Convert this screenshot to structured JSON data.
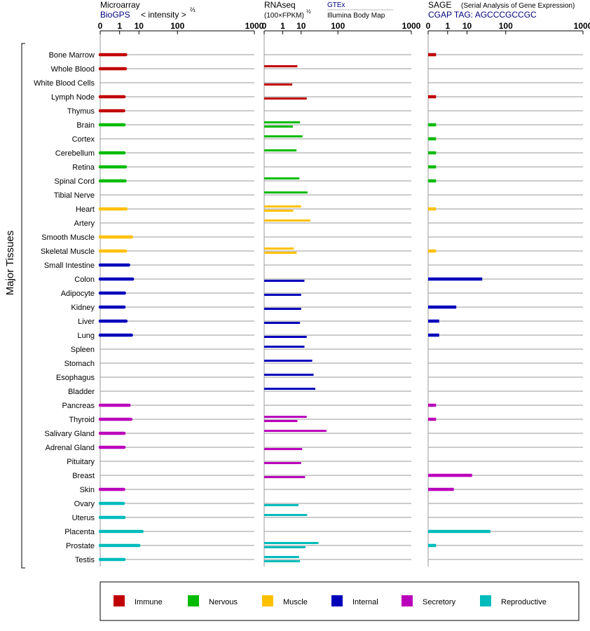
{
  "panels": {
    "microarray": {
      "title": "Microarray",
      "subtitle": "BioGPS",
      "scale_label": "< intensity >",
      "scale_exp": "⅔"
    },
    "rnaseq": {
      "title": "RNAseq",
      "subtitle": "(100×FPKM)",
      "scale_exp": "½",
      "source_link": "GTEx",
      "source_alt": "Illumina Body Map"
    },
    "sage": {
      "title": "SAGE",
      "title_note": "(Serial Analysis of Gene Expression)",
      "tag_line": "CGAP TAG: AGCCCGCCGC"
    }
  },
  "y_axis_label": "Major Tissues",
  "tick_labels": [
    "0",
    "1",
    "10",
    "100",
    "1000"
  ],
  "legend": [
    {
      "name": "Immune",
      "color": "#c00000"
    },
    {
      "name": "Nervous",
      "color": "#00bb00"
    },
    {
      "name": "Muscle",
      "color": "#ffc000"
    },
    {
      "name": "Internal",
      "color": "#0000bb"
    },
    {
      "name": "Secretory",
      "color": "#bb00bb"
    },
    {
      "name": "Reproductive",
      "color": "#00bbbb"
    }
  ],
  "chart_data": {
    "type": "bar",
    "orientation": "horizontal",
    "x_scale": "power",
    "xlim": [
      0,
      1000
    ],
    "ticks": [
      0,
      1,
      10,
      100,
      1000
    ],
    "categories": [
      "Bone Marrow",
      "Whole Blood",
      "White Blood Cells",
      "Lymph Node",
      "Thymus",
      "Brain",
      "Cortex",
      "Cerebellum",
      "Retina",
      "Spinal Cord",
      "Tibial Nerve",
      "Heart",
      "Artery",
      "Smooth Muscle",
      "Skeletal Muscle",
      "Small Intestine",
      "Colon",
      "Adipocyte",
      "Kidney",
      "Liver",
      "Lung",
      "Spleen",
      "Stomach",
      "Esophagus",
      "Bladder",
      "Pancreas",
      "Thyroid",
      "Salivary Gland",
      "Adrenal Gland",
      "Pituitary",
      "Breast",
      "Skin",
      "Ovary",
      "Uterus",
      "Placenta",
      "Prostate",
      "Testis"
    ],
    "system": [
      "Immune",
      "Immune",
      "Immune",
      "Immune",
      "Immune",
      "Nervous",
      "Nervous",
      "Nervous",
      "Nervous",
      "Nervous",
      "Nervous",
      "Muscle",
      "Muscle",
      "Muscle",
      "Muscle",
      "Internal",
      "Internal",
      "Internal",
      "Internal",
      "Internal",
      "Internal",
      "Internal",
      "Internal",
      "Internal",
      "Internal",
      "Secretory",
      "Secretory",
      "Secretory",
      "Secretory",
      "Secretory",
      "Secretory",
      "Secretory",
      "Reproductive",
      "Reproductive",
      "Reproductive",
      "Reproductive",
      "Reproductive"
    ],
    "series": [
      {
        "name": "Microarray",
        "values": [
          2.5,
          2.4,
          null,
          2.0,
          1.9,
          2.0,
          null,
          2.0,
          2.4,
          2.3,
          null,
          2.6,
          null,
          5.0,
          2.5,
          3.6,
          5.5,
          2.1,
          2.0,
          2.6,
          4.9,
          null,
          null,
          null,
          null,
          3.8,
          4.6,
          2.0,
          2.0,
          null,
          null,
          1.9,
          1.8,
          2.0,
          13.0,
          10.0,
          2.0
        ]
      },
      {
        "name": "RNAseq GTEx",
        "values": [
          null,
          7.0,
          null,
          null,
          null,
          9.0,
          11.3,
          6.4,
          null,
          8.5,
          17.0,
          10.0,
          21.0,
          null,
          4.8,
          null,
          null,
          null,
          null,
          null,
          null,
          13.3,
          24.0,
          26.3,
          29.5,
          null,
          16.0,
          57.0,
          null,
          null,
          null,
          null,
          null,
          16.5,
          null,
          36.0,
          8.3
        ]
      },
      {
        "name": "RNAseq Illumina Body Map",
        "values": [
          null,
          null,
          4.0,
          16.0,
          null,
          4.3,
          null,
          null,
          null,
          null,
          null,
          4.5,
          null,
          null,
          6.5,
          null,
          13.3,
          10.0,
          10.0,
          9.0,
          16.0,
          null,
          null,
          null,
          null,
          null,
          7.0,
          null,
          11.0,
          10.0,
          14.0,
          null,
          7.8,
          null,
          null,
          14.5,
          9.0
        ]
      },
      {
        "name": "SAGE",
        "values": [
          0.05,
          null,
          null,
          0.05,
          null,
          0.05,
          0.05,
          0.05,
          0.05,
          0.05,
          null,
          0.05,
          null,
          null,
          0.05,
          null,
          30.0,
          null,
          3.4,
          0.15,
          0.15,
          null,
          null,
          null,
          null,
          0.05,
          0.05,
          null,
          null,
          null,
          15.0,
          2.5,
          null,
          null,
          48.0,
          0.05,
          null
        ]
      }
    ]
  }
}
